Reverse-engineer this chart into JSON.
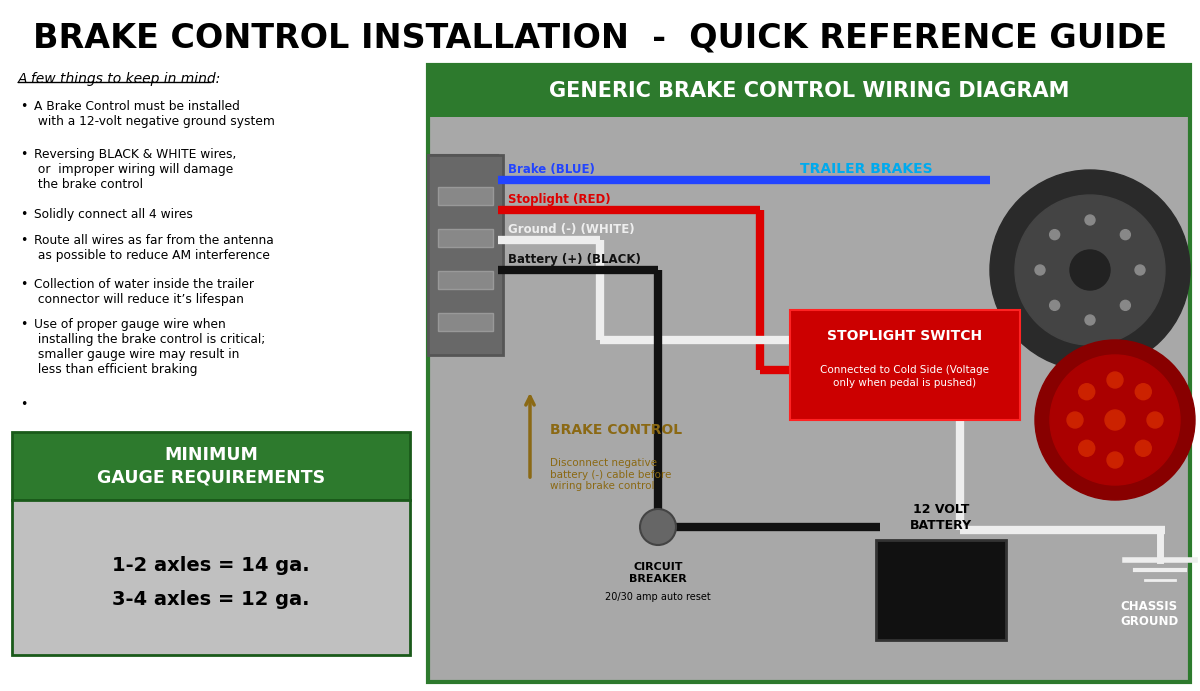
{
  "title": "BRAKE CONTROL INSTALLATION  -  QUICK REFERENCE GUIDE",
  "title_fontsize": 22,
  "title_color": "#000000",
  "bg_color": "#ffffff",
  "diagram_title": "GENERIC BRAKE CONTROL WIRING DIAGRAM",
  "diagram_title_bg": "#2d7a2d",
  "diagram_title_color": "#ffffff",
  "diagram_title_fontsize": 15,
  "left_header": "A few things to keep in mind:",
  "bullet_points": [
    "A Brake Control must be installed\n with a 12-volt negative ground system",
    "Reversing BLACK & WHITE wires,\n or  improper wiring will damage\n the brake control",
    "Solidly connect all 4 wires",
    "Route all wires as far from the antenna\n as possible to reduce AM interference",
    "Collection of water inside the trailer\n connector will reduce it’s lifespan",
    "Use of proper gauge wire when\n installing the brake control is critical;\n smaller gauge wire may result in\n less than efficient braking",
    ""
  ],
  "gauge_box_header": "MINIMUM\nGAUGE REQUIREMENTS",
  "gauge_box_header_bg": "#2d7a2d",
  "gauge_box_header_color": "#ffffff",
  "gauge_box_bg": "#c0c0c0",
  "gauge_line1": "1-2 axles = 14 ga.",
  "gauge_line2": "3-4 axles = 12 ga.",
  "wire_blue_label": "Brake (BLUE)",
  "wire_red_label": "Stoplight (RED)",
  "wire_white_label": "Ground (-) (WHITE)",
  "wire_black_label": "Battery (+) (BLACK)",
  "trailer_brakes_label": "TRAILER BRAKES",
  "brake_control_label": "BRAKE CONTROL",
  "brake_control_sublabel": "Disconnect negative\nbattery (-) cable before\nwiring brake control",
  "stoplight_switch_label": "STOPLIGHT SWITCH",
  "stoplight_switch_sublabel": "Connected to Cold Side (Voltage\nonly when pedal is pushed)",
  "circuit_breaker_label": "CIRCUIT\nBREAKER",
  "circuit_breaker_sublabel": "20/30 amp auto reset",
  "battery_label": "12 VOLT\nBATTERY",
  "chassis_ground_label": "CHASSIS\nGROUND",
  "right_panel_bg": "#a8a8a8",
  "right_panel_border": "#2d7a2d"
}
